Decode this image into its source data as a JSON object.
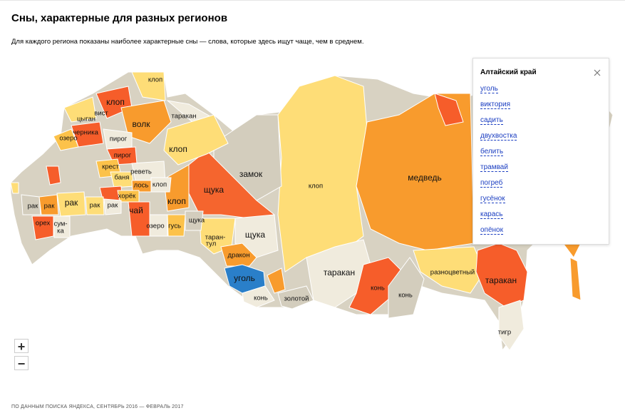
{
  "header": {
    "title": "Сны, характерные для разных регионов",
    "subtitle": "Для каждого региона показаны наиболее характерные сны — слова, которые здесь ищут чаще, чем в среднем."
  },
  "map": {
    "regions": [
      "клоп",
      "клоп",
      "вист",
      "цыган",
      "волк",
      "таракан",
      "черника",
      "озеро",
      "пирог",
      "клоп",
      "пирог",
      "крест",
      "реветь",
      "баня",
      "замок",
      "клоп",
      "медведь",
      "лось",
      "клоп",
      "хорёк",
      "рак",
      "рак",
      "рак",
      "рак",
      "рак",
      "щука",
      "клоп",
      "чай",
      "щука",
      "озеро",
      "гусь",
      "орех",
      "сум-",
      "ка",
      "таран-",
      "тул",
      "щука",
      "дракон",
      "уголь",
      "таракан",
      "разноцветный",
      "конь",
      "конь",
      "таракан",
      "золотой",
      "конь",
      "тигр"
    ]
  },
  "popup": {
    "title": "Алтайский край",
    "items": [
      "уголь",
      "виктория",
      "садить",
      "двухвостка",
      "белить",
      "трамвай",
      "погреб",
      "гусёнок",
      "карась",
      "опёнок"
    ]
  },
  "zoom": {
    "in": "+",
    "out": "−"
  },
  "footer": "ПО ДАННЫМ ПОИСКА ЯНДЕКСА, СЕНТЯБРЬ 2016 — ФЕВРАЛЬ 2017"
}
